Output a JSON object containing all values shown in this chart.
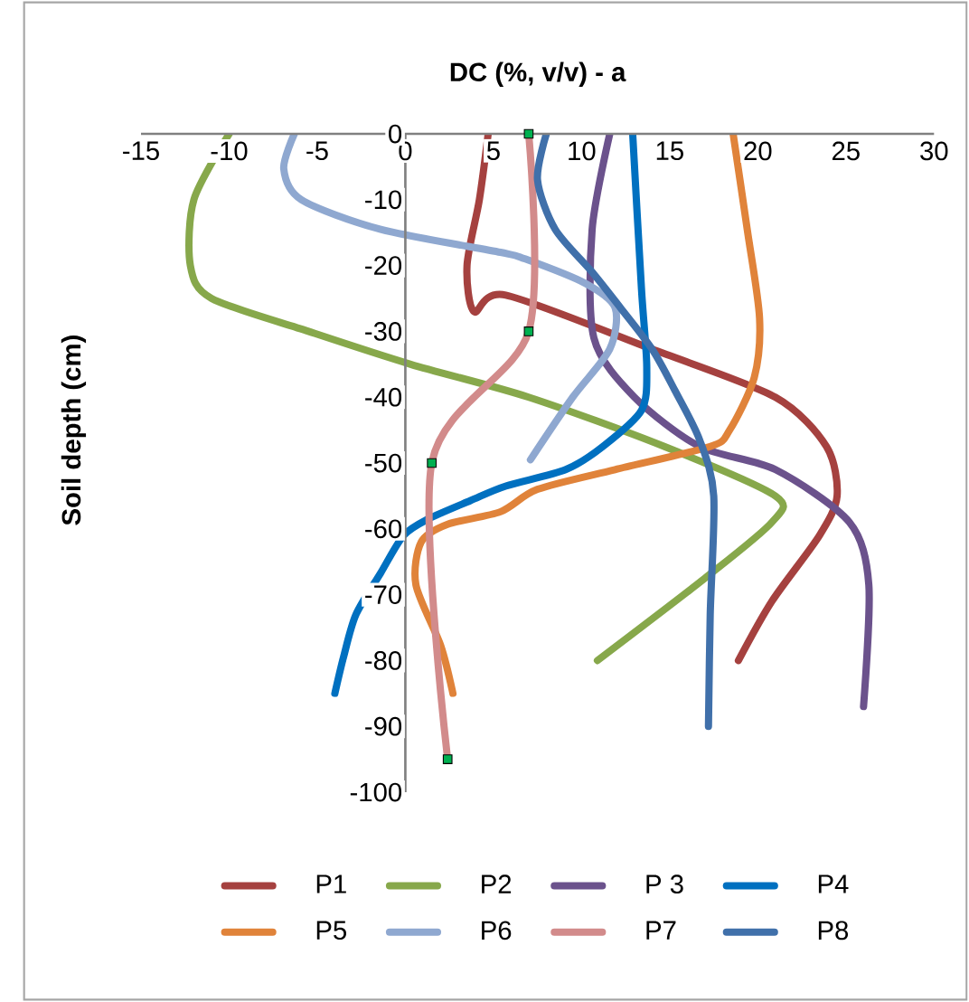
{
  "chart_data": {
    "type": "line",
    "title": "DC (%, v/v) - a",
    "ylabel": "Soil depth (cm)",
    "xlim": [
      -15,
      30
    ],
    "xticks": [
      -15,
      -10,
      -5,
      0,
      5,
      10,
      15,
      20,
      25,
      30
    ],
    "ylim": [
      -100,
      0
    ],
    "yticks": [
      -100,
      -90,
      -80,
      -70,
      -60,
      -50,
      -40,
      -30,
      -20,
      -10,
      0
    ],
    "legend": "bottom",
    "line_style": "solid",
    "series": [
      {
        "name": "P1",
        "color": "#a5413f",
        "x": [
          4.7,
          4.2,
          3.5,
          3.9,
          5.7,
          14,
          21,
          23.9,
          24.5,
          23.5,
          20.8,
          18.9
        ],
        "values": [
          0,
          -10,
          -20,
          -27,
          -24.5,
          -32.7,
          -40,
          -47.5,
          -55,
          -61,
          -71,
          -80
        ]
      },
      {
        "name": "P2",
        "color": "#87a84b",
        "x": [
          -10,
          -12,
          -12.2,
          -11,
          -5.5,
          0.3,
          7,
          14.7,
          21,
          20.8,
          17,
          10.9
        ],
        "values": [
          0,
          -10,
          -20,
          -25,
          -30,
          -35,
          -40,
          -47.5,
          -55,
          -59,
          -67.5,
          -80
        ]
      },
      {
        "name": "P 3",
        "color": "#6b528c",
        "x": [
          11.6,
          10.6,
          10.7,
          13,
          16.7,
          21,
          25.2,
          26.3,
          26
        ],
        "values": [
          0,
          -14.5,
          -31,
          -40,
          -47.5,
          -51,
          -59,
          -68.5,
          -87
        ]
      },
      {
        "name": "P4",
        "color": "#0070c0",
        "x": [
          12.9,
          13.4,
          13.7,
          13.4,
          11.2,
          9.1,
          5.7,
          3.7,
          1.3,
          -0.1,
          -1.4,
          -2.8,
          -3.5,
          -4
        ],
        "values": [
          0,
          -23.6,
          -35.5,
          -42,
          -47.5,
          -51,
          -53.5,
          -55.7,
          -58.5,
          -61,
          -66.7,
          -73,
          -79.4,
          -85
        ]
      },
      {
        "name": "P5",
        "color": "#e0833a",
        "x": [
          18.6,
          19.4,
          20.1,
          19.8,
          18.4,
          17.3,
          11.9,
          7.5,
          5.4,
          2.4,
          0.9,
          0.6,
          2,
          2.7
        ],
        "values": [
          0,
          -14.5,
          -28,
          -37,
          -45,
          -47.5,
          -51,
          -54,
          -57.4,
          -59.3,
          -62,
          -68.5,
          -77.7,
          -85
        ]
      },
      {
        "name": "P6",
        "color": "#8fa8d0",
        "x": [
          -6.3,
          -6.9,
          -5.9,
          -1.4,
          5.4,
          6.8,
          10.2,
          11.9,
          11.6,
          9.5,
          7.1
        ],
        "values": [
          0,
          -5.3,
          -10,
          -14.5,
          -18,
          -19,
          -22.7,
          -26.4,
          -32.7,
          -40,
          -49.5
        ]
      },
      {
        "name": "P7",
        "color": "#d28b8b",
        "x": [
          7,
          7,
          1.5,
          2.4
        ],
        "values": [
          0,
          -30,
          -50,
          -95
        ]
      },
      {
        "type": "scatter",
        "color": "#00b050",
        "marker": "square",
        "x": [
          7,
          7,
          1.5,
          2.4
        ],
        "values": [
          0,
          -30,
          -50,
          -95
        ]
      },
      {
        "name": "P8",
        "color": "#4070aa",
        "x": [
          8,
          7.5,
          8.5,
          10.6,
          12.2,
          14,
          15.3,
          16.7,
          17.5,
          17.3,
          17.2
        ],
        "values": [
          0,
          -7,
          -14.5,
          -21,
          -26.4,
          -32.7,
          -39,
          -46.5,
          -55,
          -73,
          -90
        ]
      }
    ]
  }
}
